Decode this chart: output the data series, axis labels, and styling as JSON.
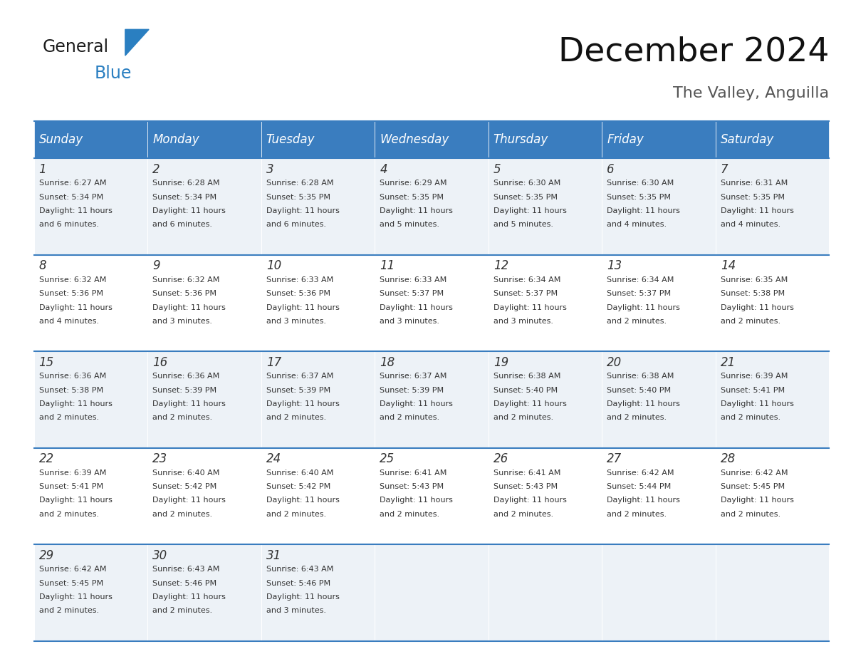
{
  "title": "December 2024",
  "subtitle": "The Valley, Anguilla",
  "header_color": "#3a7dbf",
  "header_text_color": "#ffffff",
  "row_bg_even": "#edf2f7",
  "row_bg_odd": "#ffffff",
  "text_color": "#333333",
  "subtitle_color": "#555555",
  "day_headers": [
    "Sunday",
    "Monday",
    "Tuesday",
    "Wednesday",
    "Thursday",
    "Friday",
    "Saturday"
  ],
  "calendar_data": [
    [
      {
        "day": 1,
        "sunrise": "6:27 AM",
        "sunset": "5:34 PM",
        "daylight": "11 hours and 6 minutes."
      },
      {
        "day": 2,
        "sunrise": "6:28 AM",
        "sunset": "5:34 PM",
        "daylight": "11 hours and 6 minutes."
      },
      {
        "day": 3,
        "sunrise": "6:28 AM",
        "sunset": "5:35 PM",
        "daylight": "11 hours and 6 minutes."
      },
      {
        "day": 4,
        "sunrise": "6:29 AM",
        "sunset": "5:35 PM",
        "daylight": "11 hours and 5 minutes."
      },
      {
        "day": 5,
        "sunrise": "6:30 AM",
        "sunset": "5:35 PM",
        "daylight": "11 hours and 5 minutes."
      },
      {
        "day": 6,
        "sunrise": "6:30 AM",
        "sunset": "5:35 PM",
        "daylight": "11 hours and 4 minutes."
      },
      {
        "day": 7,
        "sunrise": "6:31 AM",
        "sunset": "5:35 PM",
        "daylight": "11 hours and 4 minutes."
      }
    ],
    [
      {
        "day": 8,
        "sunrise": "6:32 AM",
        "sunset": "5:36 PM",
        "daylight": "11 hours and 4 minutes."
      },
      {
        "day": 9,
        "sunrise": "6:32 AM",
        "sunset": "5:36 PM",
        "daylight": "11 hours and 3 minutes."
      },
      {
        "day": 10,
        "sunrise": "6:33 AM",
        "sunset": "5:36 PM",
        "daylight": "11 hours and 3 minutes."
      },
      {
        "day": 11,
        "sunrise": "6:33 AM",
        "sunset": "5:37 PM",
        "daylight": "11 hours and 3 minutes."
      },
      {
        "day": 12,
        "sunrise": "6:34 AM",
        "sunset": "5:37 PM",
        "daylight": "11 hours and 3 minutes."
      },
      {
        "day": 13,
        "sunrise": "6:34 AM",
        "sunset": "5:37 PM",
        "daylight": "11 hours and 2 minutes."
      },
      {
        "day": 14,
        "sunrise": "6:35 AM",
        "sunset": "5:38 PM",
        "daylight": "11 hours and 2 minutes."
      }
    ],
    [
      {
        "day": 15,
        "sunrise": "6:36 AM",
        "sunset": "5:38 PM",
        "daylight": "11 hours and 2 minutes."
      },
      {
        "day": 16,
        "sunrise": "6:36 AM",
        "sunset": "5:39 PM",
        "daylight": "11 hours and 2 minutes."
      },
      {
        "day": 17,
        "sunrise": "6:37 AM",
        "sunset": "5:39 PM",
        "daylight": "11 hours and 2 minutes."
      },
      {
        "day": 18,
        "sunrise": "6:37 AM",
        "sunset": "5:39 PM",
        "daylight": "11 hours and 2 minutes."
      },
      {
        "day": 19,
        "sunrise": "6:38 AM",
        "sunset": "5:40 PM",
        "daylight": "11 hours and 2 minutes."
      },
      {
        "day": 20,
        "sunrise": "6:38 AM",
        "sunset": "5:40 PM",
        "daylight": "11 hours and 2 minutes."
      },
      {
        "day": 21,
        "sunrise": "6:39 AM",
        "sunset": "5:41 PM",
        "daylight": "11 hours and 2 minutes."
      }
    ],
    [
      {
        "day": 22,
        "sunrise": "6:39 AM",
        "sunset": "5:41 PM",
        "daylight": "11 hours and 2 minutes."
      },
      {
        "day": 23,
        "sunrise": "6:40 AM",
        "sunset": "5:42 PM",
        "daylight": "11 hours and 2 minutes."
      },
      {
        "day": 24,
        "sunrise": "6:40 AM",
        "sunset": "5:42 PM",
        "daylight": "11 hours and 2 minutes."
      },
      {
        "day": 25,
        "sunrise": "6:41 AM",
        "sunset": "5:43 PM",
        "daylight": "11 hours and 2 minutes."
      },
      {
        "day": 26,
        "sunrise": "6:41 AM",
        "sunset": "5:43 PM",
        "daylight": "11 hours and 2 minutes."
      },
      {
        "day": 27,
        "sunrise": "6:42 AM",
        "sunset": "5:44 PM",
        "daylight": "11 hours and 2 minutes."
      },
      {
        "day": 28,
        "sunrise": "6:42 AM",
        "sunset": "5:45 PM",
        "daylight": "11 hours and 2 minutes."
      }
    ],
    [
      {
        "day": 29,
        "sunrise": "6:42 AM",
        "sunset": "5:45 PM",
        "daylight": "11 hours and 2 minutes."
      },
      {
        "day": 30,
        "sunrise": "6:43 AM",
        "sunset": "5:46 PM",
        "daylight": "11 hours and 2 minutes."
      },
      {
        "day": 31,
        "sunrise": "6:43 AM",
        "sunset": "5:46 PM",
        "daylight": "11 hours and 3 minutes."
      },
      null,
      null,
      null,
      null
    ]
  ],
  "logo_text_general": "General",
  "logo_text_blue": "Blue",
  "logo_color_general": "#1a1a1a",
  "logo_color_blue": "#2a7fc1",
  "logo_triangle_color": "#2a7fc1",
  "title_fontsize": 34,
  "subtitle_fontsize": 16,
  "header_fontsize": 12,
  "day_num_fontsize": 12,
  "cell_text_fontsize": 8
}
